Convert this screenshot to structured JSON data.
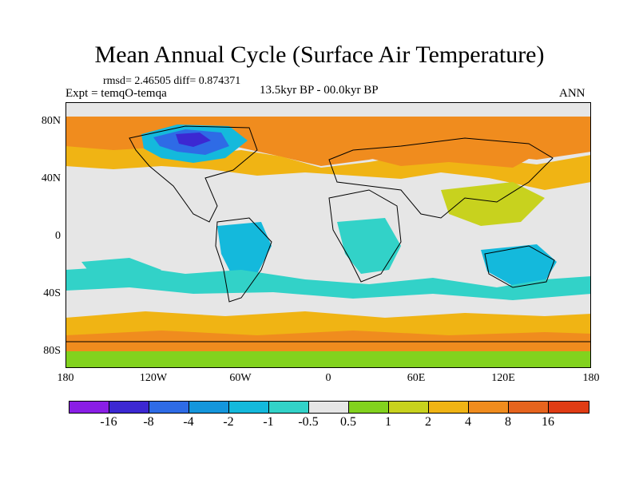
{
  "title": "Mean Annual Cycle (Surface Air Temperature)",
  "stats": "rmsd= 2.46505 diff= 0.874371",
  "experiment": "Expt = temqO-temqa",
  "period": "13.5kyr BP - 00.0kyr BP",
  "season": "ANN",
  "lat_labels": [
    "80N",
    "40N",
    "0",
    "40S",
    "80S"
  ],
  "lon_labels": [
    "180",
    "120W",
    "60W",
    "0",
    "60E",
    "120E",
    "180"
  ],
  "colorbar": {
    "labels": [
      "-16",
      "-8",
      "-4",
      "-2",
      "-1",
      "-0.5",
      "0.5",
      "1",
      "2",
      "4",
      "8",
      "16"
    ],
    "colors": [
      "#8a1ee6",
      "#3c28d2",
      "#2e6be6",
      "#1496dc",
      "#14b9dc",
      "#32d2c8",
      "#e6e6e6",
      "#82d21e",
      "#c8d21e",
      "#f0b414",
      "#f08c1e",
      "#e6641e",
      "#e03c14"
    ]
  },
  "map_colors": {
    "ocean_neutral": "#e6e6e6",
    "warm_orange": "#f08c1e",
    "warm_light": "#f0b414",
    "warm_yellow": "#c8d21e",
    "green": "#82d21e",
    "cyan": "#14b9dc",
    "teal": "#32d2c8",
    "blue": "#2e6be6",
    "deep_blue": "#3c28d2"
  }
}
